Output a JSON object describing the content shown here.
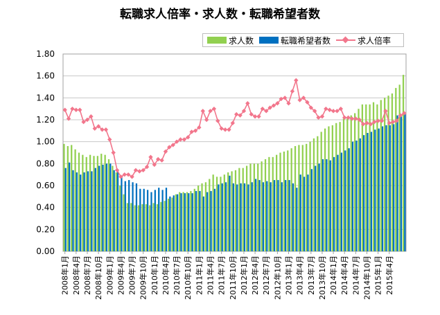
{
  "chart_data": {
    "type": "bar",
    "title": "転職求人倍率・求人数・転職希望者数",
    "xlabel": "",
    "ylabel": "",
    "ylim": [
      0,
      1.8
    ],
    "yticks": [
      "0.00",
      "0.20",
      "0.40",
      "0.60",
      "0.80",
      "1.00",
      "1.20",
      "1.40",
      "1.60",
      "1.80"
    ],
    "grid": true,
    "legend_position": "top-right",
    "xtick_labels": [
      "2008年1月",
      "2008年4月",
      "2008年7月",
      "2008年10月",
      "2009年1月",
      "2009年4月",
      "2009年7月",
      "2009年10月",
      "2010年1月",
      "2010年4月",
      "2010年7月",
      "2010年10月",
      "2011年1月",
      "2011年4月",
      "2011年7月",
      "2011年10月",
      "2012年1月",
      "2012年4月",
      "2012年7月",
      "2012年10月",
      "2013年1月",
      "2013年4月",
      "2013年7月",
      "2013年10月",
      "2014年1月",
      "2014年4月",
      "2014年7月",
      "2014年10月",
      "2015年1月",
      "2015年4月"
    ],
    "series": [
      {
        "name": "求人数",
        "kind": "bar",
        "color": "#92d050",
        "values": [
          0.98,
          0.96,
          0.97,
          0.93,
          0.9,
          0.88,
          0.86,
          0.88,
          0.87,
          0.87,
          0.89,
          0.88,
          0.84,
          0.78,
          0.72,
          0.6,
          0.52,
          0.44,
          0.44,
          0.42,
          0.42,
          0.43,
          0.43,
          0.42,
          0.44,
          0.43,
          0.45,
          0.46,
          0.48,
          0.49,
          0.52,
          0.54,
          0.54,
          0.54,
          0.55,
          0.57,
          0.6,
          0.62,
          0.63,
          0.66,
          0.7,
          0.68,
          0.68,
          0.7,
          0.72,
          0.73,
          0.74,
          0.76,
          0.76,
          0.78,
          0.8,
          0.8,
          0.8,
          0.82,
          0.84,
          0.86,
          0.86,
          0.88,
          0.9,
          0.91,
          0.92,
          0.94,
          0.96,
          0.97,
          0.97,
          0.98,
          1.0,
          1.03,
          1.05,
          1.09,
          1.12,
          1.14,
          1.15,
          1.17,
          1.18,
          1.21,
          1.22,
          1.24,
          1.26,
          1.3,
          1.34,
          1.34,
          1.34,
          1.36,
          1.34,
          1.38,
          1.4,
          1.42,
          1.44,
          1.49,
          1.52,
          1.61
        ]
      },
      {
        "name": "転職希望者数",
        "kind": "bar",
        "color": "#0070c0",
        "values": [
          0.76,
          0.81,
          0.74,
          0.72,
          0.7,
          0.72,
          0.73,
          0.73,
          0.76,
          0.78,
          0.79,
          0.8,
          0.8,
          0.74,
          0.73,
          0.68,
          0.64,
          0.65,
          0.63,
          0.62,
          0.57,
          0.57,
          0.56,
          0.54,
          0.56,
          0.58,
          0.56,
          0.58,
          0.5,
          0.51,
          0.52,
          0.53,
          0.53,
          0.53,
          0.53,
          0.55,
          0.55,
          0.5,
          0.54,
          0.55,
          0.57,
          0.61,
          0.62,
          0.63,
          0.69,
          0.62,
          0.61,
          0.62,
          0.62,
          0.61,
          0.63,
          0.66,
          0.65,
          0.63,
          0.64,
          0.63,
          0.65,
          0.65,
          0.63,
          0.65,
          0.65,
          0.62,
          0.58,
          0.7,
          0.68,
          0.7,
          0.75,
          0.78,
          0.8,
          0.84,
          0.84,
          0.83,
          0.86,
          0.88,
          0.9,
          0.92,
          0.94,
          1.0,
          1.01,
          1.03,
          1.06,
          1.08,
          1.09,
          1.11,
          1.12,
          1.14,
          1.15,
          1.15,
          1.16,
          1.24,
          1.23,
          1.25
        ]
      },
      {
        "name": "求人倍率",
        "kind": "line",
        "color": "#f2768c",
        "values": [
          1.29,
          1.21,
          1.3,
          1.29,
          1.29,
          1.18,
          1.2,
          1.23,
          1.12,
          1.14,
          1.11,
          1.11,
          1.02,
          0.9,
          0.74,
          0.68,
          0.7,
          0.7,
          0.68,
          0.74,
          0.73,
          0.74,
          0.77,
          0.86,
          0.79,
          0.84,
          0.83,
          0.91,
          0.95,
          0.97,
          1.0,
          1.02,
          1.02,
          1.04,
          1.09,
          1.1,
          1.13,
          1.28,
          1.2,
          1.28,
          1.3,
          1.19,
          1.12,
          1.11,
          1.11,
          1.17,
          1.25,
          1.24,
          1.28,
          1.35,
          1.25,
          1.23,
          1.23,
          1.3,
          1.28,
          1.31,
          1.33,
          1.35,
          1.39,
          1.4,
          1.35,
          1.46,
          1.56,
          1.38,
          1.4,
          1.36,
          1.31,
          1.28,
          1.22,
          1.23,
          1.3,
          1.29,
          1.28,
          1.28,
          1.3,
          1.22,
          1.22,
          1.21,
          1.21,
          1.2,
          1.16,
          1.17,
          1.16,
          1.18,
          1.19,
          1.19,
          1.28,
          1.17,
          1.18,
          1.19,
          1.24,
          1.26
        ]
      }
    ]
  }
}
